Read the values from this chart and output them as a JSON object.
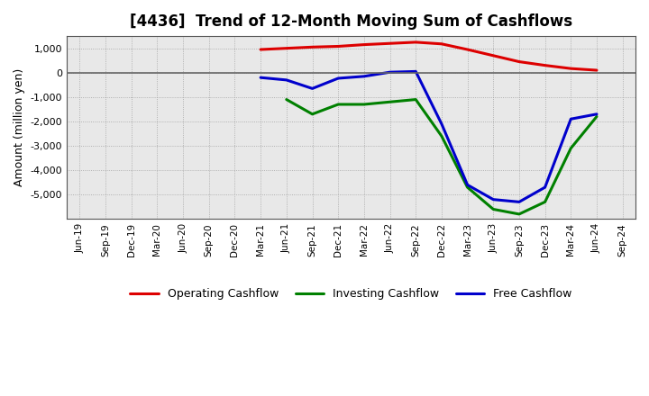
{
  "title": "[4436]  Trend of 12-Month Moving Sum of Cashflows",
  "ylabel": "Amount (million yen)",
  "background_color": "#ffffff",
  "plot_bg_color": "#e8e8e8",
  "grid_color": "#999999",
  "zero_line_color": "#666666",
  "x_labels": [
    "Jun-19",
    "Sep-19",
    "Dec-19",
    "Mar-20",
    "Jun-20",
    "Sep-20",
    "Dec-20",
    "Mar-21",
    "Jun-21",
    "Sep-21",
    "Dec-21",
    "Mar-22",
    "Jun-22",
    "Sep-22",
    "Dec-22",
    "Mar-23",
    "Jun-23",
    "Sep-23",
    "Dec-23",
    "Mar-24",
    "Jun-24",
    "Sep-24"
  ],
  "operating_cashflow": [
    null,
    null,
    null,
    null,
    null,
    null,
    null,
    950,
    1000,
    1050,
    1080,
    1150,
    1200,
    1250,
    1180,
    950,
    700,
    450,
    300,
    170,
    100,
    null
  ],
  "investing_cashflow": [
    null,
    null,
    null,
    null,
    null,
    null,
    null,
    null,
    -1100,
    -1700,
    -1300,
    -1300,
    -1200,
    -1100,
    -2600,
    -4700,
    -5600,
    -5800,
    -5300,
    -3100,
    -1800,
    null
  ],
  "free_cashflow": [
    null,
    null,
    null,
    null,
    null,
    null,
    null,
    -200,
    -300,
    -650,
    -230,
    -150,
    20,
    50,
    -2100,
    -4600,
    -5200,
    -5300,
    -4700,
    -1900,
    -1700,
    null
  ],
  "operating_color": "#dd0000",
  "investing_color": "#008000",
  "free_color": "#0000cc",
  "ylim": [
    -6000,
    1500
  ],
  "yticks": [
    -5000,
    -4000,
    -3000,
    -2000,
    -1000,
    0,
    1000
  ],
  "linewidth": 2.2
}
